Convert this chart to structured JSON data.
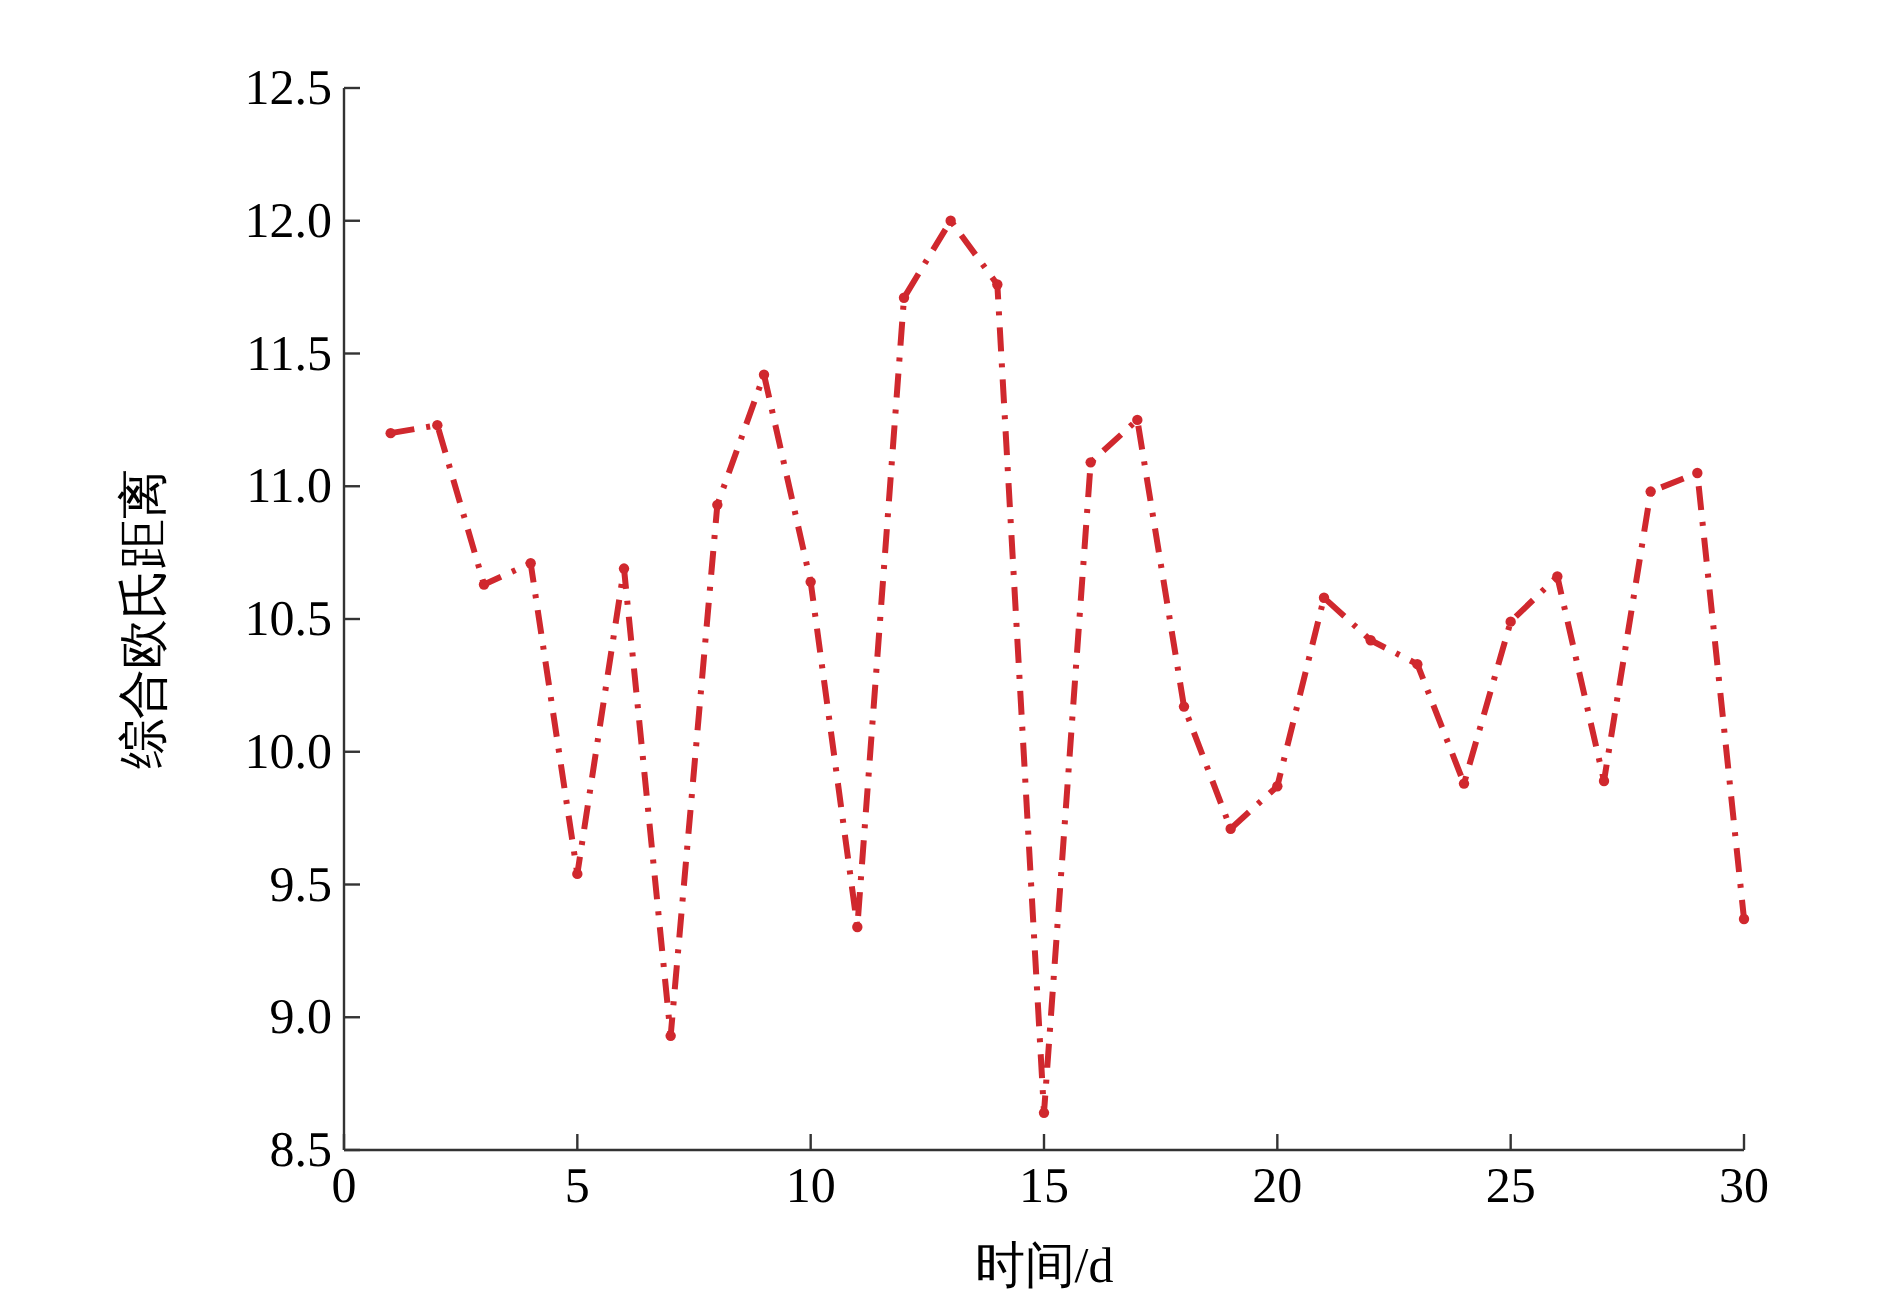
{
  "chart_data": {
    "type": "line",
    "xlabel": "时间/d",
    "ylabel": "综合欧氏距离",
    "x": [
      1,
      2,
      3,
      4,
      5,
      6,
      7,
      8,
      9,
      10,
      11,
      12,
      13,
      14,
      15,
      16,
      17,
      18,
      19,
      20,
      21,
      22,
      23,
      24,
      25,
      26,
      27,
      28,
      29,
      30
    ],
    "series": [
      {
        "color": "#d0282e",
        "values": [
          11.2,
          11.23,
          10.63,
          10.71,
          9.54,
          10.69,
          8.93,
          10.93,
          11.42,
          10.64,
          9.34,
          11.71,
          12.0,
          11.76,
          8.64,
          11.09,
          11.25,
          10.17,
          9.71,
          9.87,
          10.58,
          10.42,
          10.33,
          9.88,
          10.49,
          10.66,
          9.89,
          10.98,
          11.05,
          9.37
        ]
      }
    ],
    "xlim": [
      0,
      30
    ],
    "xticks": [
      0,
      5,
      10,
      15,
      20,
      25,
      30
    ],
    "ylim": [
      8.5,
      12.5
    ],
    "yticks": [
      {
        "value": 8.5,
        "label": "8.5"
      },
      {
        "value": 9,
        "label": "9.0"
      },
      {
        "value": 9.5,
        "label": "9.5"
      },
      {
        "value": 10,
        "label": "10.0"
      },
      {
        "value": 10.5,
        "label": "10.5"
      },
      {
        "value": 11,
        "label": "11.0"
      },
      {
        "value": 11.5,
        "label": "11.5"
      },
      {
        "value": 12,
        "label": "12.0"
      },
      {
        "value": 12.5,
        "label": "12.5"
      }
    ],
    "marker": "circle",
    "line_style": "dashdot"
  }
}
